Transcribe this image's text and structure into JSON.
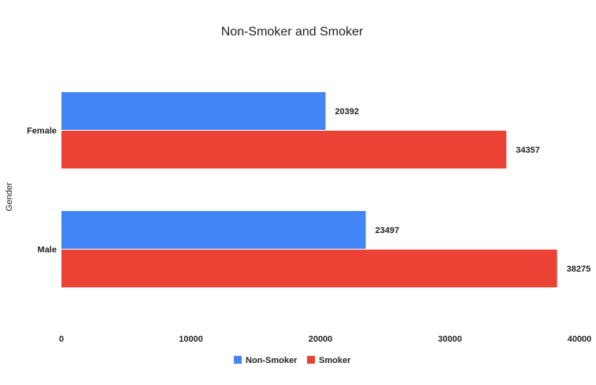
{
  "chart_data": {
    "type": "bar",
    "orientation": "horizontal",
    "title": "Non-Smoker and Smoker",
    "xlabel": "",
    "ylabel": "Gender",
    "categories": [
      "Female",
      "Male"
    ],
    "series": [
      {
        "name": "Non-Smoker",
        "color": "#4285f4",
        "values": [
          20392,
          23497
        ]
      },
      {
        "name": "Smoker",
        "color": "#ea4335",
        "values": [
          34357,
          38275
        ]
      }
    ],
    "xlim": [
      0,
      40000
    ],
    "x_ticks": [
      "0",
      "10000",
      "20000",
      "30000",
      "40000"
    ],
    "grid": false,
    "legend_position": "bottom"
  }
}
